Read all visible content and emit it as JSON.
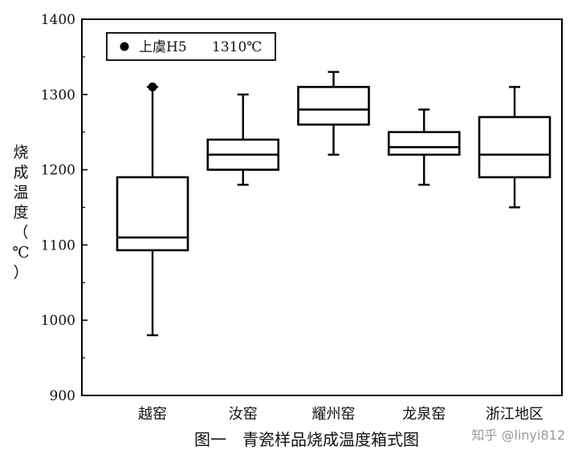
{
  "chart_data": {
    "type": "box",
    "title": "",
    "xlabel": "",
    "ylabel": "烧成温度（℃）",
    "ylim": [
      900,
      1400
    ],
    "yticks": [
      900,
      1000,
      1100,
      1200,
      1300,
      1400
    ],
    "grid": false,
    "legend_position": "top-left",
    "categories": [
      "越窑",
      "汝窑",
      "耀州窑",
      "龙泉窑",
      "浙江地区"
    ],
    "boxes": [
      {
        "category": "越窑",
        "min": 980,
        "q1": 1093,
        "median": 1110,
        "q3": 1190,
        "max": 1310
      },
      {
        "category": "汝窑",
        "min": 1180,
        "q1": 1200,
        "median": 1220,
        "q3": 1240,
        "max": 1300
      },
      {
        "category": "耀州窑",
        "min": 1220,
        "q1": 1260,
        "median": 1280,
        "q3": 1310,
        "max": 1330
      },
      {
        "category": "龙泉窑",
        "min": 1180,
        "q1": 1220,
        "median": 1230,
        "q3": 1250,
        "max": 1280
      },
      {
        "category": "浙江地区",
        "min": 1150,
        "q1": 1190,
        "median": 1220,
        "q3": 1270,
        "max": 1310
      }
    ],
    "highlight_point": {
      "category": "越窑",
      "value": 1310,
      "label": "上虞H5",
      "value_label": "1310℃"
    }
  },
  "caption": "图一　青瓷样品烧成温度箱式图",
  "watermark": "知乎 @linyi812"
}
